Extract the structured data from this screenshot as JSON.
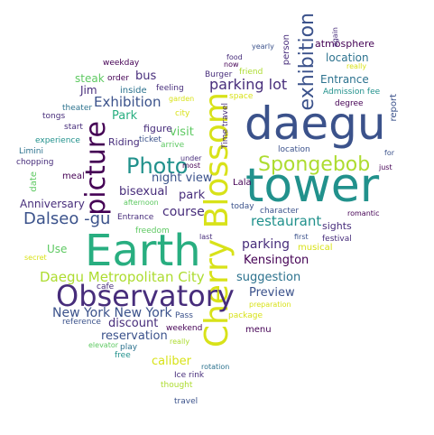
{
  "word_cloud": {
    "colors": {
      "dark_purple": "#440154",
      "indigo": "#472d7b",
      "navy": "#3b528b",
      "blue": "#2c728e",
      "teal": "#21918c",
      "green": "#28ae80",
      "lime": "#5ec962",
      "yellow_green": "#addc30",
      "yellow": "#d8e219"
    },
    "words": [
      "daegu",
      "tower",
      "Earth",
      "Cherry Blossom",
      "Observatory",
      "picture",
      "Photo",
      "Spongebob",
      "exhibition",
      "Dalseo -gu",
      "parking lot",
      "Daegu Metropolitan City",
      "Exhibition",
      "Park",
      "New York New York",
      "restaurant",
      "Kensington",
      "reservation",
      "discount",
      "course",
      "night view",
      "bisexual",
      "park",
      "parking",
      "visit",
      "Preview",
      "suggestion",
      "Anniversary",
      "Use",
      "caliber",
      "bus",
      "steak",
      "Jim",
      "inside",
      "feeling",
      "order",
      "weekday",
      "figure",
      "Riding",
      "ticket",
      "arrive",
      "garden",
      "city",
      "Time travel",
      "space",
      "Burger",
      "now",
      "food",
      "friend",
      "yearly",
      "person",
      "atmosphere",
      "again",
      "location",
      "really",
      "Entrance",
      "Admission fee",
      "degree",
      "report",
      "for",
      "just",
      "character",
      "Lala",
      "sights",
      "romantic",
      "festival",
      "musical",
      "first",
      "last",
      "today",
      "Entrance",
      "afternoon",
      "freedom",
      "meal",
      "date",
      "Limini",
      "experience",
      "chopping",
      "theater",
      "tongs",
      "start",
      "most",
      "under",
      "secret",
      "cafe",
      "reference",
      "elevator",
      "play",
      "free",
      "weekend",
      "Pass",
      "package",
      "preparation",
      "menu",
      "really",
      "rotation",
      "Ice rink",
      "thought",
      "travel",
      "location"
    ]
  }
}
